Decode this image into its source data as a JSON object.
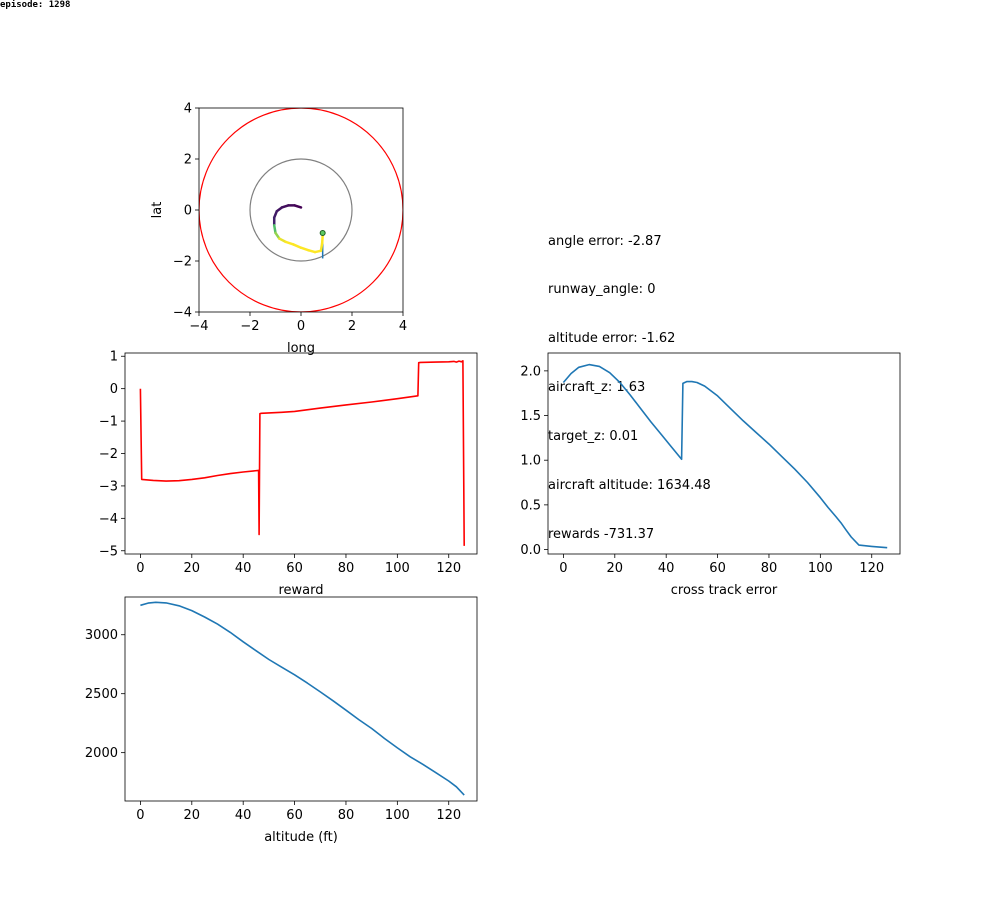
{
  "header": {
    "episode_label": "episode: 1298"
  },
  "info_panel": {
    "lines": [
      "angle error: -2.87",
      "runway_angle: 0",
      "altitude error: -1.62",
      "aircraft_z: 1.63",
      "target_z: 0.01",
      "aircraft altitude: 1634.48",
      "rewards -731.37"
    ]
  },
  "colors": {
    "red_series": "#ff0000",
    "blue_series": "#1f77b4",
    "track_start": "#440154",
    "track_end": "#fde725",
    "inner_circle": "#808080",
    "outer_circle": "#ff0000"
  },
  "chart_data": [
    {
      "id": "position",
      "type": "scatter",
      "xlabel": "long",
      "ylabel": "lat",
      "xlim": [
        -4,
        4
      ],
      "ylim": [
        -4,
        4
      ],
      "xticks": [
        -4,
        -2,
        0,
        2,
        4
      ],
      "yticks": [
        -4,
        -2,
        0,
        2,
        4
      ],
      "xtick_labels": [
        "−4",
        "−2",
        "0",
        "2",
        "4"
      ],
      "ytick_labels": [
        "−4",
        "−2",
        "0",
        "2",
        "4"
      ],
      "circles": [
        {
          "name": "inner",
          "cx": 0,
          "cy": 0,
          "r": 2
        },
        {
          "name": "outer",
          "cx": 0,
          "cy": 0,
          "r": 4
        }
      ],
      "track": [
        [
          0,
          0.1
        ],
        [
          -0.25,
          0.18
        ],
        [
          -0.5,
          0.18
        ],
        [
          -0.75,
          0.1
        ],
        [
          -0.95,
          -0.05
        ],
        [
          -1.05,
          -0.3
        ],
        [
          -1.05,
          -0.6
        ],
        [
          -1.0,
          -0.9
        ],
        [
          -0.85,
          -1.12
        ],
        [
          -0.6,
          -1.25
        ],
        [
          -0.3,
          -1.35
        ],
        [
          0,
          -1.48
        ],
        [
          0.3,
          -1.58
        ],
        [
          0.55,
          -1.65
        ],
        [
          0.78,
          -1.6
        ],
        [
          0.83,
          -1.3
        ],
        [
          0.85,
          -1.0
        ]
      ],
      "runway_line": [
        [
          0.85,
          -0.9
        ],
        [
          0.85,
          -1.9
        ]
      ],
      "target_marker": [
        0.85,
        -0.9
      ]
    },
    {
      "id": "reward",
      "type": "line",
      "xlabel": "reward",
      "ylabel": "",
      "xlim": [
        -6,
        131
      ],
      "ylim": [
        -5.1,
        1.1
      ],
      "xticks": [
        0,
        20,
        40,
        60,
        80,
        100,
        120
      ],
      "yticks": [
        1,
        0,
        -1,
        -2,
        -3,
        -4,
        -5
      ],
      "xtick_labels": [
        "0",
        "20",
        "40",
        "60",
        "80",
        "100",
        "120"
      ],
      "ytick_labels": [
        "1",
        "0",
        "−1",
        "−2",
        "−3",
        "−4",
        "−5"
      ],
      "series": [
        {
          "x": [
            0,
            0.5,
            5,
            10,
            15,
            20,
            25,
            30,
            35,
            40,
            46,
            46.2,
            46.5,
            47,
            55,
            60,
            70,
            80,
            90,
            100,
            108,
            108.3,
            109,
            115,
            120,
            122,
            123,
            124,
            125,
            125.5,
            126
          ],
          "y": [
            0,
            -2.8,
            -2.83,
            -2.85,
            -2.84,
            -2.8,
            -2.75,
            -2.68,
            -2.62,
            -2.57,
            -2.52,
            -4.5,
            -0.77,
            -0.76,
            -0.73,
            -0.7,
            -0.6,
            -0.5,
            -0.41,
            -0.31,
            -0.22,
            0.8,
            0.81,
            0.82,
            0.83,
            0.84,
            0.82,
            0.85,
            0.83,
            0.86,
            -4.85
          ]
        }
      ]
    },
    {
      "id": "cross_track",
      "type": "line",
      "xlabel": "cross track error",
      "ylabel": "",
      "xlim": [
        -6,
        131
      ],
      "ylim": [
        -0.05,
        2.2
      ],
      "xticks": [
        0,
        20,
        40,
        60,
        80,
        100,
        120
      ],
      "yticks": [
        0,
        0.5,
        1.0,
        1.5,
        2.0
      ],
      "xtick_labels": [
        "0",
        "20",
        "40",
        "60",
        "80",
        "100",
        "120"
      ],
      "ytick_labels": [
        "0.0",
        "0.5",
        "1.0",
        "1.5",
        "2.0"
      ],
      "series": [
        {
          "x": [
            0,
            3,
            6,
            10,
            14,
            18,
            22,
            26,
            30,
            34,
            38,
            42,
            46,
            46.5,
            48,
            50,
            52,
            55,
            60,
            65,
            70,
            75,
            80,
            85,
            90,
            95,
            100,
            103,
            106,
            108,
            110,
            112,
            115,
            120,
            126
          ],
          "y": [
            1.87,
            1.97,
            2.04,
            2.07,
            2.05,
            1.98,
            1.87,
            1.73,
            1.58,
            1.43,
            1.29,
            1.15,
            1.01,
            1.86,
            1.88,
            1.88,
            1.87,
            1.83,
            1.72,
            1.58,
            1.44,
            1.31,
            1.18,
            1.04,
            0.9,
            0.75,
            0.58,
            0.47,
            0.37,
            0.3,
            0.22,
            0.14,
            0.05,
            0.035,
            0.02
          ]
        }
      ]
    },
    {
      "id": "altitude",
      "type": "line",
      "xlabel": "altitude (ft)",
      "ylabel": "",
      "xlim": [
        -6,
        131
      ],
      "ylim": [
        1590,
        3320
      ],
      "xticks": [
        0,
        20,
        40,
        60,
        80,
        100,
        120
      ],
      "yticks": [
        2000,
        2500,
        3000
      ],
      "xtick_labels": [
        "0",
        "20",
        "40",
        "60",
        "80",
        "100",
        "120"
      ],
      "ytick_labels": [
        "2000",
        "2500",
        "3000"
      ],
      "series": [
        {
          "x": [
            0,
            3,
            6,
            10,
            15,
            20,
            25,
            30,
            35,
            40,
            45,
            50,
            55,
            60,
            65,
            70,
            75,
            80,
            85,
            90,
            95,
            100,
            105,
            110,
            115,
            120,
            123,
            126
          ],
          "y": [
            3250,
            3268,
            3275,
            3270,
            3245,
            3205,
            3150,
            3090,
            3020,
            2940,
            2865,
            2790,
            2725,
            2660,
            2590,
            2515,
            2440,
            2360,
            2280,
            2205,
            2120,
            2040,
            1965,
            1900,
            1830,
            1760,
            1710,
            1640
          ]
        }
      ]
    }
  ]
}
